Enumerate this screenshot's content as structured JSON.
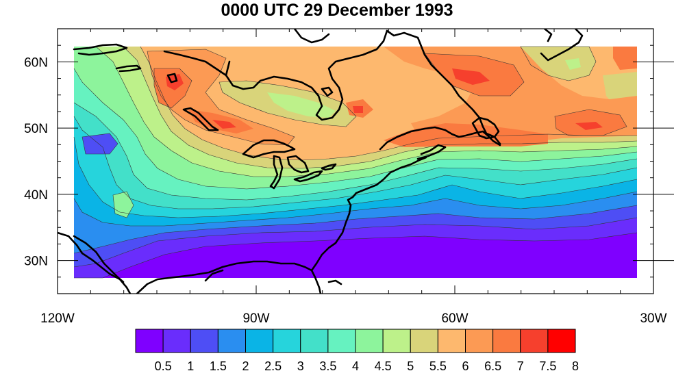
{
  "title": "0000 UTC 29 December 1993",
  "map": {
    "lon_range": [
      -120,
      -30
    ],
    "lat_range": [
      25,
      65
    ],
    "data_lon_range": [
      -117.5,
      -32.5
    ],
    "data_lat_range": [
      27.5,
      62.5
    ],
    "lon_ticks": [
      {
        "value": -120,
        "label": "120W"
      },
      {
        "value": -90,
        "label": "90W"
      },
      {
        "value": -60,
        "label": "60W"
      },
      {
        "value": -30,
        "label": "30W"
      }
    ],
    "lat_ticks": [
      {
        "value": 30,
        "label": "30N"
      },
      {
        "value": 40,
        "label": "40N"
      },
      {
        "value": 50,
        "label": "50N"
      },
      {
        "value": 60,
        "label": "60N"
      }
    ]
  },
  "colorbar": {
    "colors": [
      "#7f00ff",
      "#6a2dfc",
      "#4e4ef5",
      "#2a8ef0",
      "#0ab4e6",
      "#26d4dc",
      "#43e0c9",
      "#66f2c0",
      "#8df49c",
      "#bdf18a",
      "#d9d47a",
      "#fdb86e",
      "#fc9a54",
      "#fa7a40",
      "#f6402d",
      "#ff0000"
    ],
    "labels": [
      "0.5",
      "1",
      "1.5",
      "2",
      "2.5",
      "3",
      "3.5",
      "4",
      "4.5",
      "5",
      "5.5",
      "6",
      "6.5",
      "7",
      "7.5",
      "8"
    ]
  }
}
